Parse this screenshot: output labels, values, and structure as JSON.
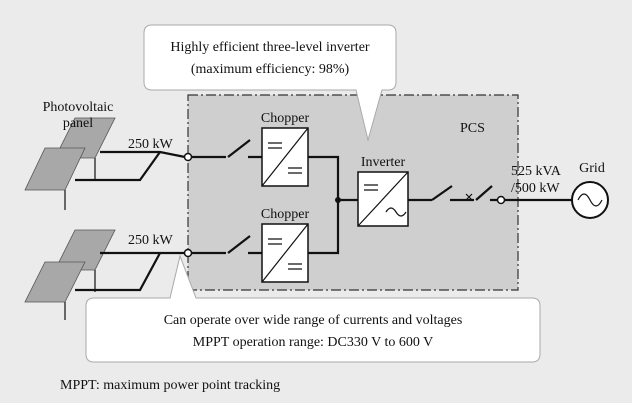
{
  "callout_top": {
    "line1": "Highly efficient three-level inverter",
    "line2": "(maximum efficiency: 98%)"
  },
  "pv_label": {
    "line1": "Photovoltaic",
    "line2": "panel"
  },
  "input_top": "250 kW",
  "input_bottom": "250 kW",
  "chopper_top": "Chopper",
  "chopper_bottom": "Chopper",
  "pcs": "PCS",
  "inverter": "Inverter",
  "output": {
    "line1": "525 kVA",
    "line2": "/500 kW"
  },
  "grid": "Grid",
  "callout_bottom": {
    "line1": "Can operate over wide range of currents and voltages",
    "line2": "MPPT operation range: DC330 V to 600 V"
  },
  "footnote": "MPPT: maximum power point tracking"
}
